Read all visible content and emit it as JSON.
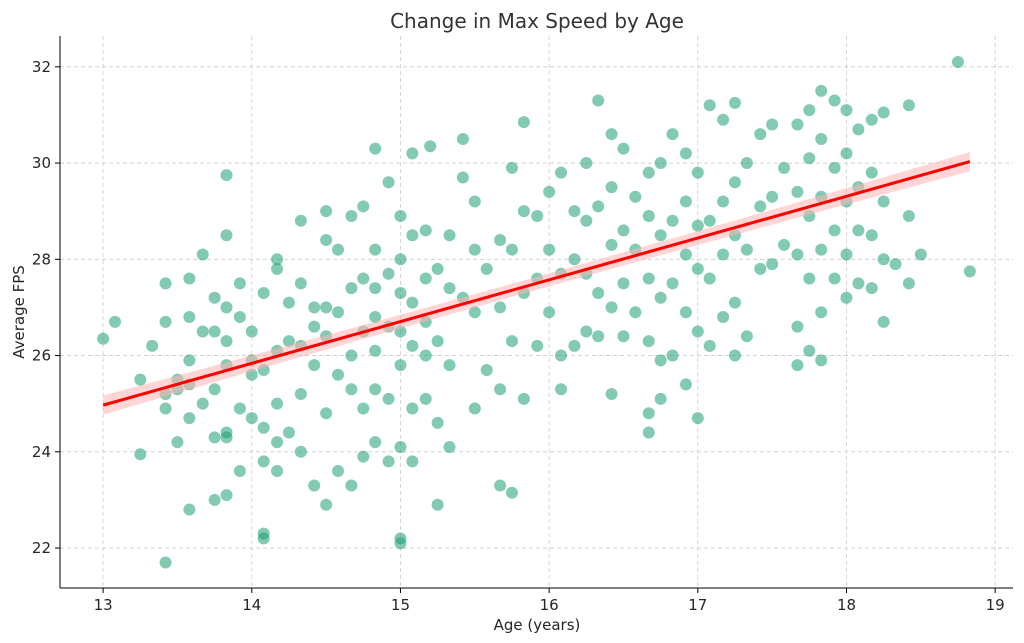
{
  "chart_data": {
    "type": "scatter",
    "title": "Change in Max Speed by Age",
    "xlabel": "Age (years)",
    "ylabel": "Average FPS",
    "xlim": [
      12.71,
      19.12
    ],
    "ylim": [
      21.17,
      32.64
    ],
    "xticks": [
      13,
      14,
      15,
      16,
      17,
      18,
      19
    ],
    "yticks": [
      22,
      24,
      26,
      28,
      30,
      32
    ],
    "grid": true,
    "point_color": "#1b9e77",
    "line_color": "#ff0000",
    "band_color": "#ffb3b3",
    "regression": {
      "x": [
        13.0,
        18.83
      ],
      "y": [
        24.97,
        30.03
      ],
      "ci_halfwidth_ends": 0.2
    },
    "points": [
      [
        13.0,
        26.35
      ],
      [
        13.08,
        26.7
      ],
      [
        13.25,
        23.95
      ],
      [
        13.25,
        25.5
      ],
      [
        13.33,
        26.2
      ],
      [
        13.42,
        21.7
      ],
      [
        13.42,
        24.9
      ],
      [
        13.42,
        25.2
      ],
      [
        13.42,
        26.7
      ],
      [
        13.42,
        27.5
      ],
      [
        13.5,
        24.2
      ],
      [
        13.5,
        25.3
      ],
      [
        13.5,
        25.5
      ],
      [
        13.58,
        22.8
      ],
      [
        13.58,
        25.4
      ],
      [
        13.58,
        25.9
      ],
      [
        13.58,
        26.8
      ],
      [
        13.58,
        27.6
      ],
      [
        13.58,
        24.7
      ],
      [
        13.67,
        25.0
      ],
      [
        13.67,
        26.5
      ],
      [
        13.67,
        28.1
      ],
      [
        13.75,
        23.0
      ],
      [
        13.75,
        24.3
      ],
      [
        13.75,
        25.3
      ],
      [
        13.75,
        27.2
      ],
      [
        13.75,
        26.5
      ],
      [
        13.83,
        23.1
      ],
      [
        13.83,
        24.3
      ],
      [
        13.83,
        25.8
      ],
      [
        13.83,
        26.3
      ],
      [
        13.83,
        27.0
      ],
      [
        13.83,
        28.5
      ],
      [
        13.83,
        29.75
      ],
      [
        13.83,
        24.4
      ],
      [
        13.92,
        23.6
      ],
      [
        13.92,
        24.9
      ],
      [
        13.92,
        26.8
      ],
      [
        13.92,
        27.5
      ],
      [
        14.0,
        24.7
      ],
      [
        14.0,
        25.6
      ],
      [
        14.0,
        26.5
      ],
      [
        14.0,
        25.9
      ],
      [
        14.08,
        22.2
      ],
      [
        14.08,
        22.3
      ],
      [
        14.08,
        23.8
      ],
      [
        14.08,
        24.5
      ],
      [
        14.08,
        25.7
      ],
      [
        14.08,
        27.3
      ],
      [
        14.17,
        23.6
      ],
      [
        14.17,
        24.2
      ],
      [
        14.17,
        25.0
      ],
      [
        14.17,
        26.1
      ],
      [
        14.17,
        27.8
      ],
      [
        14.17,
        28.0
      ],
      [
        14.25,
        24.4
      ],
      [
        14.25,
        26.3
      ],
      [
        14.25,
        27.1
      ],
      [
        14.33,
        24.0
      ],
      [
        14.33,
        25.2
      ],
      [
        14.33,
        26.2
      ],
      [
        14.33,
        27.5
      ],
      [
        14.33,
        28.8
      ],
      [
        14.42,
        23.3
      ],
      [
        14.42,
        25.8
      ],
      [
        14.42,
        26.6
      ],
      [
        14.42,
        27.0
      ],
      [
        14.5,
        22.9
      ],
      [
        14.5,
        24.8
      ],
      [
        14.5,
        26.4
      ],
      [
        14.5,
        27.0
      ],
      [
        14.5,
        28.4
      ],
      [
        14.5,
        29.0
      ],
      [
        14.58,
        23.6
      ],
      [
        14.58,
        25.6
      ],
      [
        14.58,
        26.9
      ],
      [
        14.58,
        28.2
      ],
      [
        14.67,
        23.3
      ],
      [
        14.67,
        25.3
      ],
      [
        14.67,
        26.0
      ],
      [
        14.67,
        27.4
      ],
      [
        14.67,
        28.9
      ],
      [
        14.75,
        23.9
      ],
      [
        14.75,
        24.9
      ],
      [
        14.75,
        26.5
      ],
      [
        14.75,
        27.6
      ],
      [
        14.75,
        29.1
      ],
      [
        14.83,
        24.2
      ],
      [
        14.83,
        25.3
      ],
      [
        14.83,
        26.1
      ],
      [
        14.83,
        26.8
      ],
      [
        14.83,
        27.4
      ],
      [
        14.83,
        28.2
      ],
      [
        14.83,
        30.3
      ],
      [
        14.92,
        23.8
      ],
      [
        14.92,
        25.1
      ],
      [
        14.92,
        26.6
      ],
      [
        14.92,
        27.7
      ],
      [
        14.92,
        29.6
      ],
      [
        15.0,
        22.1
      ],
      [
        15.0,
        22.2
      ],
      [
        15.0,
        24.1
      ],
      [
        15.0,
        25.8
      ],
      [
        15.0,
        26.5
      ],
      [
        15.0,
        27.3
      ],
      [
        15.0,
        28.0
      ],
      [
        15.0,
        28.9
      ],
      [
        15.08,
        23.8
      ],
      [
        15.08,
        24.9
      ],
      [
        15.08,
        26.2
      ],
      [
        15.08,
        27.1
      ],
      [
        15.08,
        28.5
      ],
      [
        15.08,
        30.2
      ],
      [
        15.17,
        25.1
      ],
      [
        15.17,
        26.0
      ],
      [
        15.17,
        26.7
      ],
      [
        15.17,
        27.6
      ],
      [
        15.17,
        28.6
      ],
      [
        15.2,
        30.35
      ],
      [
        15.25,
        22.9
      ],
      [
        15.25,
        24.6
      ],
      [
        15.25,
        26.3
      ],
      [
        15.25,
        27.8
      ],
      [
        15.33,
        24.1
      ],
      [
        15.33,
        25.8
      ],
      [
        15.33,
        27.4
      ],
      [
        15.33,
        28.5
      ],
      [
        15.42,
        27.2
      ],
      [
        15.42,
        29.7
      ],
      [
        15.42,
        30.5
      ],
      [
        15.5,
        24.9
      ],
      [
        15.5,
        26.9
      ],
      [
        15.5,
        28.2
      ],
      [
        15.5,
        29.2
      ],
      [
        15.58,
        25.7
      ],
      [
        15.58,
        27.8
      ],
      [
        15.67,
        23.3
      ],
      [
        15.67,
        25.3
      ],
      [
        15.67,
        27.0
      ],
      [
        15.67,
        28.4
      ],
      [
        15.75,
        23.15
      ],
      [
        15.75,
        26.3
      ],
      [
        15.75,
        28.2
      ],
      [
        15.75,
        29.9
      ],
      [
        15.83,
        25.1
      ],
      [
        15.83,
        27.3
      ],
      [
        15.83,
        29.0
      ],
      [
        15.83,
        30.85
      ],
      [
        15.92,
        26.2
      ],
      [
        15.92,
        27.6
      ],
      [
        15.92,
        28.9
      ],
      [
        16.0,
        26.9
      ],
      [
        16.0,
        28.2
      ],
      [
        16.0,
        29.4
      ],
      [
        16.08,
        25.3
      ],
      [
        16.08,
        26.0
      ],
      [
        16.08,
        27.7
      ],
      [
        16.08,
        29.8
      ],
      [
        16.17,
        26.2
      ],
      [
        16.17,
        28.0
      ],
      [
        16.17,
        29.0
      ],
      [
        16.25,
        26.5
      ],
      [
        16.25,
        27.7
      ],
      [
        16.25,
        28.8
      ],
      [
        16.25,
        30.0
      ],
      [
        16.33,
        26.4
      ],
      [
        16.33,
        27.3
      ],
      [
        16.33,
        29.1
      ],
      [
        16.33,
        31.3
      ],
      [
        16.42,
        25.2
      ],
      [
        16.42,
        27.0
      ],
      [
        16.42,
        28.3
      ],
      [
        16.42,
        29.5
      ],
      [
        16.42,
        30.6
      ],
      [
        16.5,
        26.4
      ],
      [
        16.5,
        27.5
      ],
      [
        16.5,
        28.6
      ],
      [
        16.5,
        30.3
      ],
      [
        16.58,
        26.9
      ],
      [
        16.58,
        28.2
      ],
      [
        16.58,
        29.3
      ],
      [
        16.67,
        24.4
      ],
      [
        16.67,
        24.8
      ],
      [
        16.67,
        26.3
      ],
      [
        16.67,
        27.6
      ],
      [
        16.67,
        28.9
      ],
      [
        16.67,
        29.8
      ],
      [
        16.75,
        25.1
      ],
      [
        16.75,
        25.9
      ],
      [
        16.75,
        27.2
      ],
      [
        16.75,
        28.5
      ],
      [
        16.75,
        30.0
      ],
      [
        16.83,
        26.0
      ],
      [
        16.83,
        27.5
      ],
      [
        16.83,
        28.8
      ],
      [
        16.83,
        30.6
      ],
      [
        16.92,
        25.4
      ],
      [
        16.92,
        26.9
      ],
      [
        16.92,
        28.1
      ],
      [
        16.92,
        29.2
      ],
      [
        16.92,
        30.2
      ],
      [
        17.0,
        24.7
      ],
      [
        17.0,
        26.5
      ],
      [
        17.0,
        27.8
      ],
      [
        17.0,
        28.7
      ],
      [
        17.0,
        29.8
      ],
      [
        17.08,
        26.2
      ],
      [
        17.08,
        27.6
      ],
      [
        17.08,
        28.8
      ],
      [
        17.08,
        31.2
      ],
      [
        17.17,
        26.8
      ],
      [
        17.17,
        28.1
      ],
      [
        17.17,
        29.2
      ],
      [
        17.17,
        30.9
      ],
      [
        17.25,
        26.0
      ],
      [
        17.25,
        27.1
      ],
      [
        17.25,
        28.5
      ],
      [
        17.25,
        29.6
      ],
      [
        17.25,
        31.25
      ],
      [
        17.33,
        26.4
      ],
      [
        17.33,
        28.2
      ],
      [
        17.33,
        30.0
      ],
      [
        17.42,
        27.8
      ],
      [
        17.42,
        29.1
      ],
      [
        17.42,
        30.6
      ],
      [
        17.5,
        27.9
      ],
      [
        17.5,
        29.3
      ],
      [
        17.5,
        30.8
      ],
      [
        17.58,
        28.3
      ],
      [
        17.58,
        29.9
      ],
      [
        17.67,
        25.8
      ],
      [
        17.67,
        26.6
      ],
      [
        17.67,
        28.1
      ],
      [
        17.67,
        29.4
      ],
      [
        17.67,
        30.8
      ],
      [
        17.75,
        26.1
      ],
      [
        17.75,
        27.6
      ],
      [
        17.75,
        28.9
      ],
      [
        17.75,
        30.1
      ],
      [
        17.75,
        31.1
      ],
      [
        17.83,
        25.9
      ],
      [
        17.83,
        26.9
      ],
      [
        17.83,
        28.2
      ],
      [
        17.83,
        29.3
      ],
      [
        17.83,
        30.5
      ],
      [
        17.83,
        31.5
      ],
      [
        17.92,
        27.6
      ],
      [
        17.92,
        28.6
      ],
      [
        17.92,
        29.9
      ],
      [
        17.92,
        31.3
      ],
      [
        18.0,
        27.2
      ],
      [
        18.0,
        28.1
      ],
      [
        18.0,
        29.2
      ],
      [
        18.0,
        30.2
      ],
      [
        18.0,
        31.1
      ],
      [
        18.08,
        27.5
      ],
      [
        18.08,
        28.6
      ],
      [
        18.08,
        29.5
      ],
      [
        18.08,
        30.7
      ],
      [
        18.17,
        27.4
      ],
      [
        18.17,
        28.5
      ],
      [
        18.17,
        29.8
      ],
      [
        18.17,
        30.9
      ],
      [
        18.25,
        26.7
      ],
      [
        18.25,
        28.0
      ],
      [
        18.25,
        29.2
      ],
      [
        18.25,
        31.05
      ],
      [
        18.33,
        27.9
      ],
      [
        18.42,
        27.5
      ],
      [
        18.42,
        28.9
      ],
      [
        18.42,
        31.2
      ],
      [
        18.5,
        28.1
      ],
      [
        18.75,
        32.1
      ],
      [
        18.83,
        27.75
      ]
    ]
  }
}
